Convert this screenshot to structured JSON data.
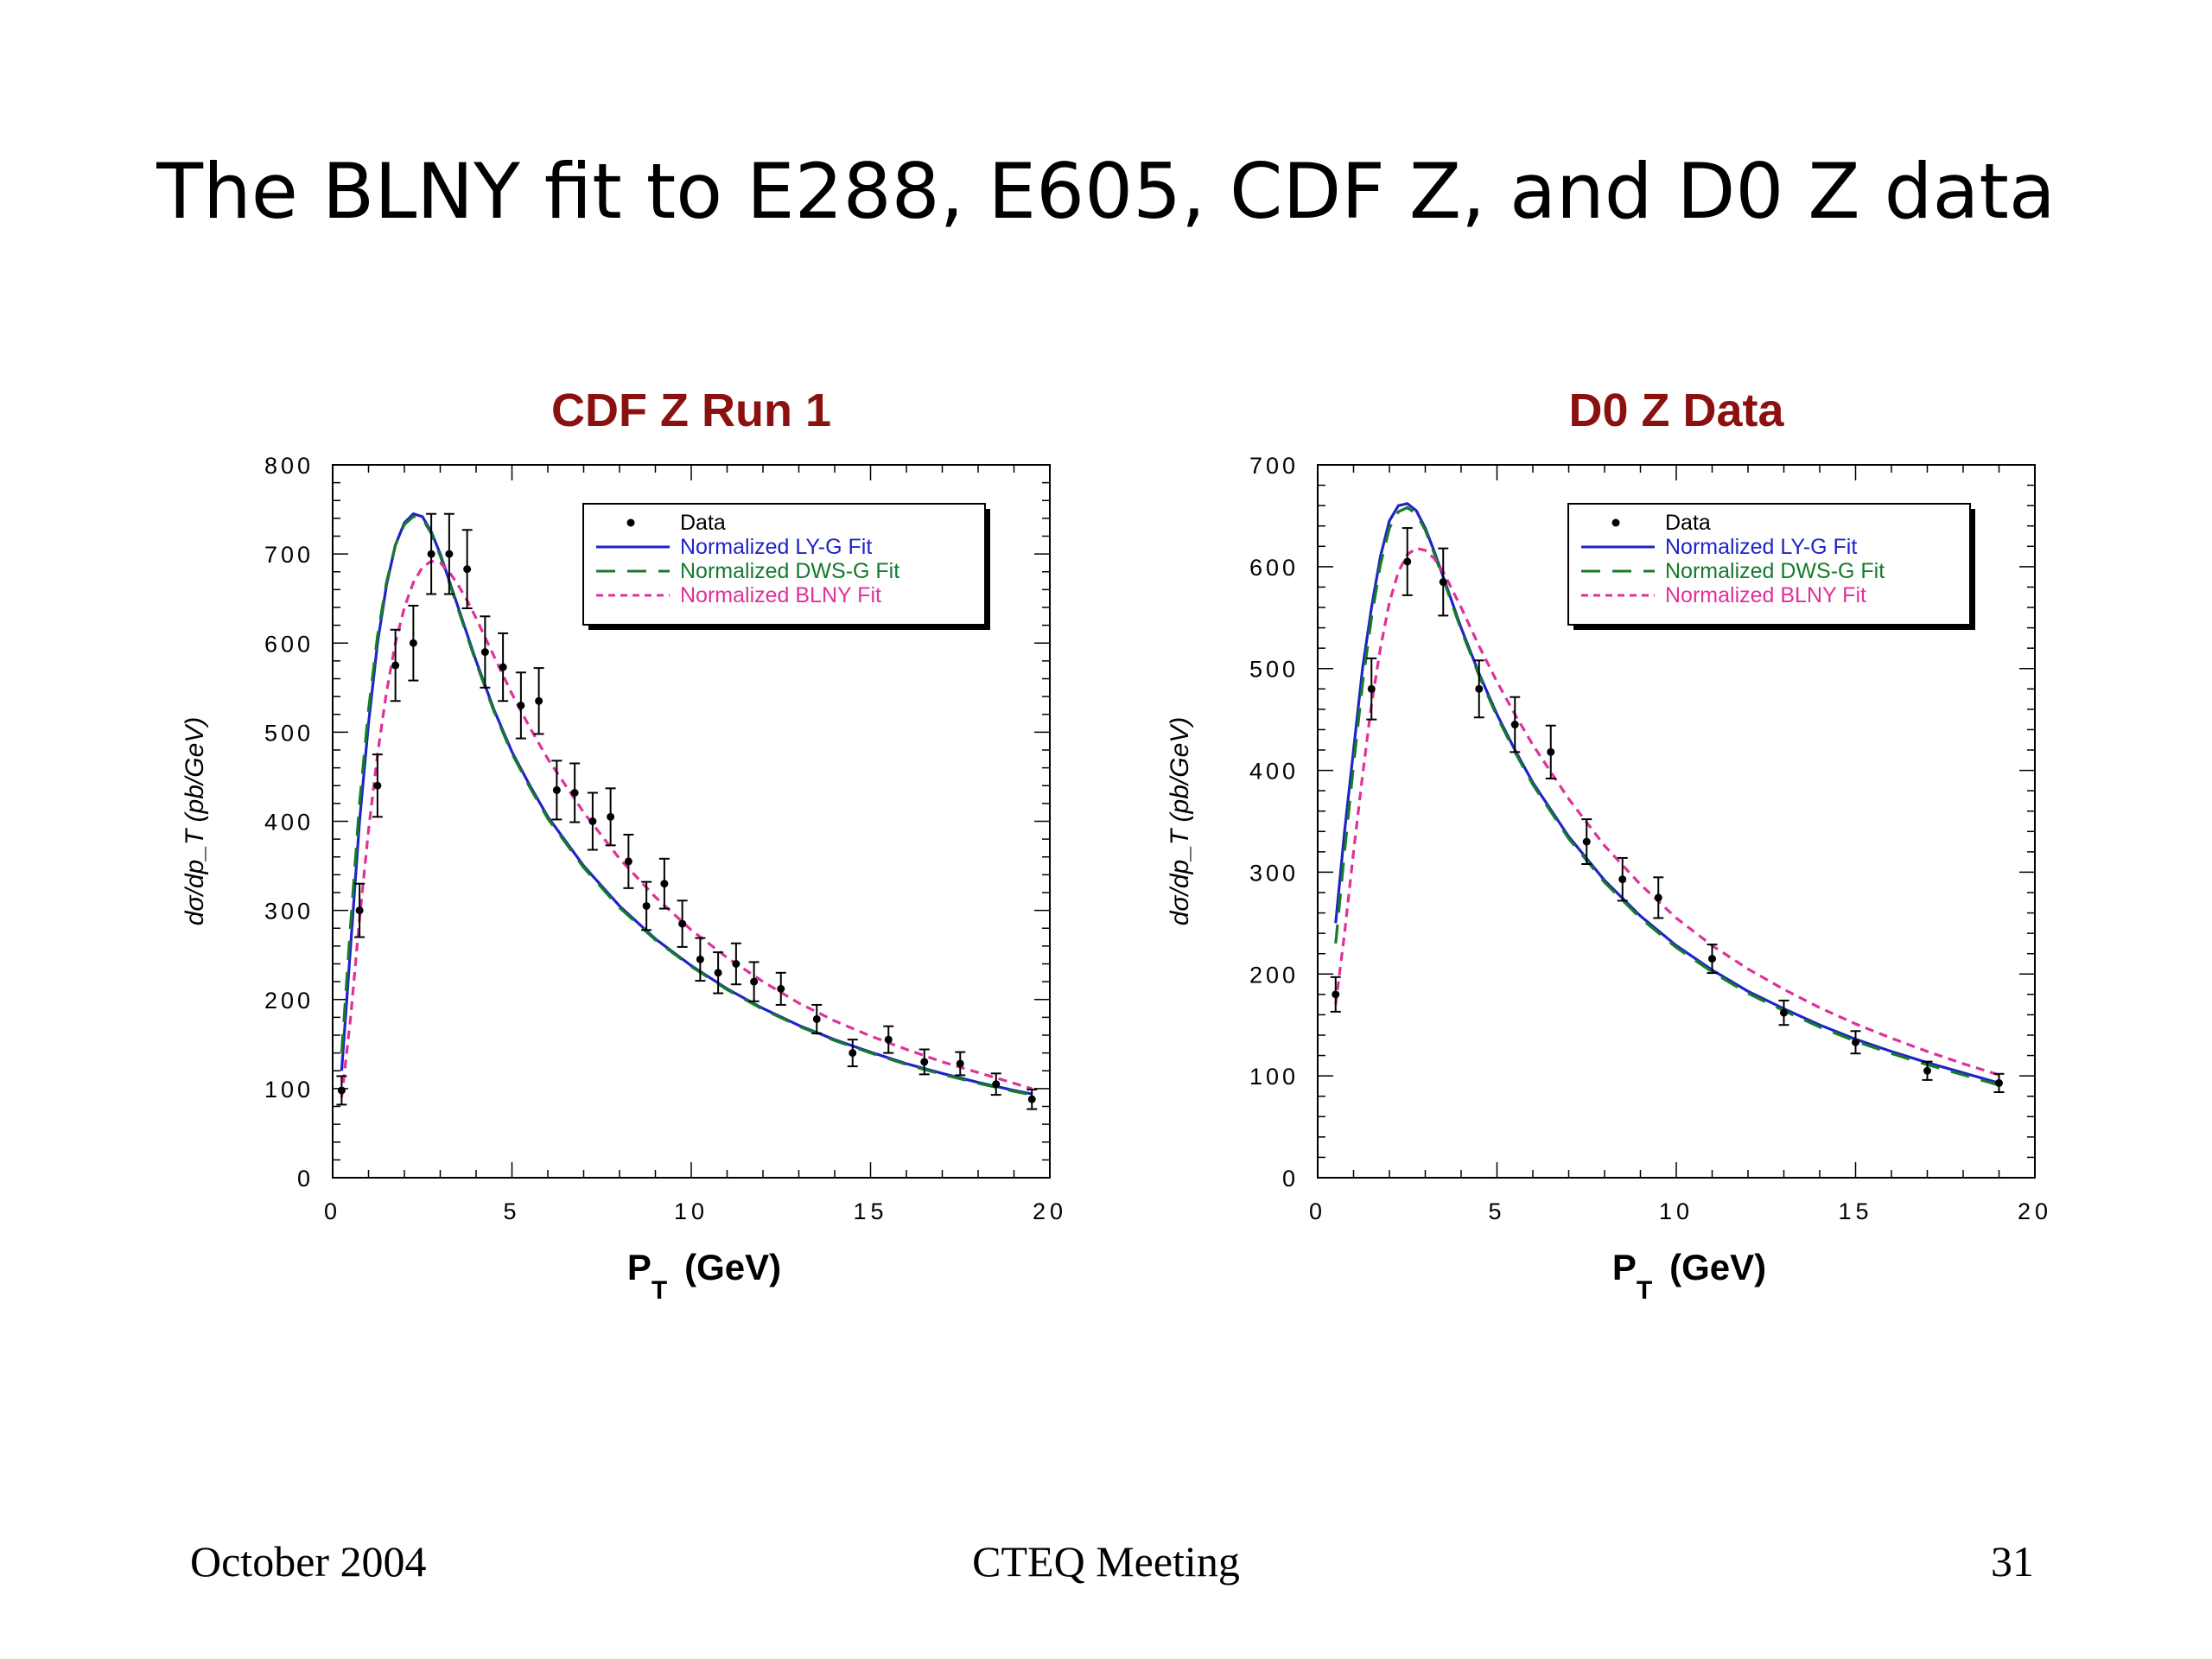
{
  "slide": {
    "title": "The BLNY fit to E288, E605, CDF Z, and D0 Z data",
    "footer_left": "October 2004",
    "footer_center": "CTEQ Meeting",
    "footer_right": "31"
  },
  "colors": {
    "title_red": "#8b1010",
    "data": "#000000",
    "ly_g": "#1f23c8",
    "dws_g": "#157a2a",
    "blny": "#e0309a"
  },
  "chart_data": [
    {
      "type": "line",
      "title": "CDF Z Run 1",
      "xlabel_main": "P",
      "xlabel_sub": "T",
      "xlabel_unit": "(GeV)",
      "ylabel": "dσ/dp_T (pb/GeV)",
      "xlim": [
        0,
        20
      ],
      "ylim": [
        0,
        800
      ],
      "xticks": [
        0,
        5,
        10,
        15,
        20
      ],
      "yticks": [
        0,
        100,
        200,
        300,
        400,
        500,
        600,
        700,
        800
      ],
      "legend_position": "top-right",
      "legend": [
        "Data",
        "Normalized LY-G Fit",
        "Normalized DWS-G Fit",
        "Normalized BLNY Fit"
      ],
      "data_points": [
        {
          "x": 0.25,
          "y": 98,
          "err": 16
        },
        {
          "x": 0.75,
          "y": 300,
          "err": 30
        },
        {
          "x": 1.25,
          "y": 440,
          "err": 35
        },
        {
          "x": 1.75,
          "y": 575,
          "err": 40
        },
        {
          "x": 2.25,
          "y": 600,
          "err": 42
        },
        {
          "x": 2.75,
          "y": 700,
          "err": 45
        },
        {
          "x": 3.25,
          "y": 700,
          "err": 45
        },
        {
          "x": 3.75,
          "y": 683,
          "err": 44
        },
        {
          "x": 4.25,
          "y": 590,
          "err": 40
        },
        {
          "x": 4.75,
          "y": 573,
          "err": 38
        },
        {
          "x": 5.25,
          "y": 530,
          "err": 37
        },
        {
          "x": 5.75,
          "y": 535,
          "err": 37
        },
        {
          "x": 6.25,
          "y": 435,
          "err": 33
        },
        {
          "x": 6.75,
          "y": 432,
          "err": 33
        },
        {
          "x": 7.25,
          "y": 400,
          "err": 32
        },
        {
          "x": 7.75,
          "y": 405,
          "err": 32
        },
        {
          "x": 8.25,
          "y": 355,
          "err": 30
        },
        {
          "x": 8.75,
          "y": 305,
          "err": 27
        },
        {
          "x": 9.25,
          "y": 330,
          "err": 28
        },
        {
          "x": 9.75,
          "y": 285,
          "err": 26
        },
        {
          "x": 10.25,
          "y": 245,
          "err": 24
        },
        {
          "x": 10.75,
          "y": 230,
          "err": 23
        },
        {
          "x": 11.25,
          "y": 240,
          "err": 23
        },
        {
          "x": 11.75,
          "y": 220,
          "err": 22
        },
        {
          "x": 12.5,
          "y": 212,
          "err": 18
        },
        {
          "x": 13.5,
          "y": 178,
          "err": 16
        },
        {
          "x": 14.5,
          "y": 140,
          "err": 15
        },
        {
          "x": 15.5,
          "y": 155,
          "err": 15
        },
        {
          "x": 16.5,
          "y": 130,
          "err": 14
        },
        {
          "x": 17.5,
          "y": 128,
          "err": 13
        },
        {
          "x": 18.5,
          "y": 105,
          "err": 12
        },
        {
          "x": 19.5,
          "y": 88,
          "err": 11
        }
      ],
      "series": [
        {
          "name": "Normalized LY-G Fit",
          "style": "solid",
          "x": [
            0.25,
            0.5,
            0.75,
            1,
            1.25,
            1.5,
            1.75,
            2,
            2.25,
            2.5,
            2.75,
            3,
            3.25,
            3.5,
            3.75,
            4,
            4.5,
            5,
            5.5,
            6,
            7,
            8,
            9,
            10,
            11,
            12,
            13,
            14,
            15,
            16,
            17,
            18,
            19,
            19.5
          ],
          "y": [
            120,
            260,
            400,
            510,
            600,
            665,
            710,
            735,
            745,
            742,
            725,
            700,
            670,
            640,
            610,
            580,
            525,
            478,
            440,
            405,
            350,
            305,
            268,
            238,
            212,
            190,
            171,
            155,
            141,
            128,
            117,
            107,
            98,
            94
          ]
        },
        {
          "name": "Normalized DWS-G Fit",
          "style": "dashed",
          "x": [
            0.25,
            0.5,
            0.75,
            1,
            1.25,
            1.5,
            1.75,
            2,
            2.25,
            2.5,
            2.75,
            3,
            3.25,
            3.5,
            3.75,
            4,
            4.5,
            5,
            5.5,
            6,
            7,
            8,
            9,
            10,
            11,
            12,
            13,
            14,
            15,
            16,
            17,
            18,
            19,
            19.5
          ],
          "y": [
            140,
            285,
            420,
            525,
            608,
            668,
            710,
            733,
            742,
            740,
            723,
            698,
            668,
            638,
            608,
            578,
            523,
            476,
            438,
            403,
            348,
            303,
            267,
            237,
            211,
            189,
            170,
            154,
            140,
            127,
            116,
            106,
            97,
            93
          ]
        },
        {
          "name": "Normalized BLNY Fit",
          "style": "dotted",
          "x": [
            0.25,
            0.5,
            0.75,
            1,
            1.25,
            1.5,
            1.75,
            2,
            2.25,
            2.5,
            2.75,
            3,
            3.25,
            3.5,
            3.75,
            4,
            4.5,
            5,
            5.5,
            6,
            7,
            8,
            9,
            10,
            11,
            12,
            13,
            14,
            15,
            16,
            17,
            18,
            19,
            19.5
          ],
          "y": [
            90,
            180,
            290,
            390,
            475,
            545,
            600,
            640,
            668,
            685,
            692,
            690,
            680,
            665,
            648,
            628,
            585,
            543,
            505,
            470,
            410,
            358,
            315,
            278,
            247,
            220,
            196,
            176,
            159,
            144,
            130,
            118,
            106,
            100
          ]
        }
      ]
    },
    {
      "type": "line",
      "title": "D0  Z  Data",
      "xlabel_main": "P",
      "xlabel_sub": "T",
      "xlabel_unit": "(GeV)",
      "ylabel": "dσ/dp_T (pb/GeV)",
      "xlim": [
        0,
        20
      ],
      "ylim": [
        0,
        700
      ],
      "xticks": [
        0,
        5,
        10,
        15,
        20
      ],
      "yticks": [
        0,
        100,
        200,
        300,
        400,
        500,
        600,
        700
      ],
      "legend_position": "top-right",
      "legend": [
        "Data",
        "Normalized LY-G Fit",
        "Normalized DWS-G Fit",
        "Normalized BLNY Fit"
      ],
      "data_points": [
        {
          "x": 0.5,
          "y": 180,
          "err": 17
        },
        {
          "x": 1.5,
          "y": 480,
          "err": 30
        },
        {
          "x": 2.5,
          "y": 605,
          "err": 33
        },
        {
          "x": 3.5,
          "y": 585,
          "err": 33
        },
        {
          "x": 4.5,
          "y": 480,
          "err": 28
        },
        {
          "x": 5.5,
          "y": 445,
          "err": 27
        },
        {
          "x": 6.5,
          "y": 418,
          "err": 26
        },
        {
          "x": 7.5,
          "y": 330,
          "err": 22
        },
        {
          "x": 8.5,
          "y": 293,
          "err": 21
        },
        {
          "x": 9.5,
          "y": 275,
          "err": 20
        },
        {
          "x": 11,
          "y": 215,
          "err": 14
        },
        {
          "x": 13,
          "y": 162,
          "err": 12
        },
        {
          "x": 15,
          "y": 133,
          "err": 11
        },
        {
          "x": 17,
          "y": 105,
          "err": 9
        },
        {
          "x": 19,
          "y": 93,
          "err": 9
        }
      ],
      "series": [
        {
          "name": "Normalized LY-G Fit",
          "style": "solid",
          "x": [
            0.5,
            0.75,
            1,
            1.25,
            1.5,
            1.75,
            2,
            2.25,
            2.5,
            2.75,
            3,
            3.25,
            3.5,
            4,
            4.5,
            5,
            5.5,
            6,
            7,
            8,
            9,
            10,
            11,
            12,
            13,
            14,
            15,
            16,
            17,
            18,
            19
          ],
          "y": [
            250,
            340,
            420,
            500,
            560,
            610,
            645,
            660,
            662,
            655,
            638,
            615,
            590,
            540,
            495,
            455,
            420,
            388,
            335,
            292,
            257,
            228,
            204,
            183,
            166,
            150,
            136,
            124,
            113,
            103,
            93
          ]
        },
        {
          "name": "Normalized DWS-G Fit",
          "style": "dashed",
          "x": [
            0.5,
            0.75,
            1,
            1.25,
            1.5,
            1.75,
            2,
            2.25,
            2.5,
            2.75,
            3,
            3.25,
            3.5,
            4,
            4.5,
            5,
            5.5,
            6,
            7,
            8,
            9,
            10,
            11,
            12,
            13,
            14,
            15,
            16,
            17,
            18,
            19
          ],
          "y": [
            230,
            320,
            405,
            485,
            550,
            602,
            638,
            654,
            658,
            652,
            636,
            613,
            588,
            538,
            493,
            453,
            418,
            386,
            333,
            290,
            255,
            226,
            202,
            181,
            164,
            148,
            134,
            122,
            111,
            101,
            91
          ]
        },
        {
          "name": "Normalized BLNY Fit",
          "style": "dotted",
          "x": [
            0.5,
            0.75,
            1,
            1.25,
            1.5,
            1.75,
            2,
            2.25,
            2.5,
            2.75,
            3,
            3.25,
            3.5,
            4,
            4.5,
            5,
            5.5,
            6,
            7,
            8,
            9,
            10,
            11,
            12,
            13,
            14,
            15,
            16,
            17,
            18,
            19
          ],
          "y": [
            170,
            240,
            320,
            395,
            465,
            520,
            565,
            595,
            612,
            618,
            616,
            608,
            595,
            560,
            522,
            487,
            455,
            425,
            372,
            326,
            288,
            255,
            228,
            205,
            185,
            167,
            151,
            137,
            124,
            112,
            101
          ]
        }
      ]
    }
  ]
}
